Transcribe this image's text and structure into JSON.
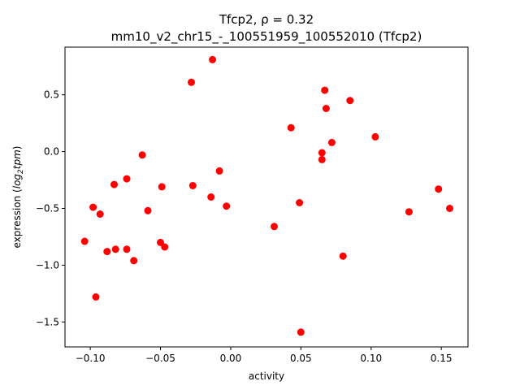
{
  "chart_data": {
    "type": "scatter",
    "title_line1": "Tfcp2, ρ = 0.32",
    "title_line2": "mm10_v2_chr15_-_100551959_100552010 (Tfcp2)",
    "xlabel": "activity",
    "ylabel_prefix": "expression (",
    "ylabel_math": "log",
    "ylabel_sub": "2",
    "ylabel_math2": "tpm",
    "ylabel_suffix": ")",
    "xlim": [
      -0.118,
      0.169
    ],
    "ylim": [
      -1.72,
      0.92
    ],
    "xticks": [
      -0.1,
      -0.05,
      0.0,
      0.05,
      0.1,
      0.15
    ],
    "xtick_labels": [
      "−0.10",
      "−0.05",
      "0.00",
      "0.05",
      "0.10",
      "0.15"
    ],
    "yticks": [
      0.5,
      0.0,
      -0.5,
      -1.0,
      -1.5
    ],
    "ytick_labels": [
      "0.5",
      "0.0",
      "−0.5",
      "−1.0",
      "−1.5"
    ],
    "grid": false,
    "marker_color": "#ff0000",
    "points": [
      {
        "x": -0.104,
        "y": -0.79
      },
      {
        "x": -0.098,
        "y": -0.49
      },
      {
        "x": -0.096,
        "y": -1.28
      },
      {
        "x": -0.093,
        "y": -0.55
      },
      {
        "x": -0.088,
        "y": -0.88
      },
      {
        "x": -0.083,
        "y": -0.29
      },
      {
        "x": -0.082,
        "y": -0.86
      },
      {
        "x": -0.074,
        "y": -0.24
      },
      {
        "x": -0.074,
        "y": -0.86
      },
      {
        "x": -0.069,
        "y": -0.96
      },
      {
        "x": -0.063,
        "y": -0.03
      },
      {
        "x": -0.059,
        "y": -0.52
      },
      {
        "x": -0.05,
        "y": -0.8
      },
      {
        "x": -0.049,
        "y": -0.31
      },
      {
        "x": -0.047,
        "y": -0.84
      },
      {
        "x": -0.028,
        "y": 0.61
      },
      {
        "x": -0.027,
        "y": -0.3
      },
      {
        "x": -0.014,
        "y": -0.4
      },
      {
        "x": -0.013,
        "y": 0.81
      },
      {
        "x": -0.008,
        "y": -0.17
      },
      {
        "x": -0.003,
        "y": -0.48
      },
      {
        "x": 0.031,
        "y": -0.66
      },
      {
        "x": 0.043,
        "y": 0.21
      },
      {
        "x": 0.049,
        "y": -0.45
      },
      {
        "x": 0.05,
        "y": -1.59
      },
      {
        "x": 0.065,
        "y": -0.01
      },
      {
        "x": 0.065,
        "y": -0.07
      },
      {
        "x": 0.067,
        "y": 0.54
      },
      {
        "x": 0.068,
        "y": 0.38
      },
      {
        "x": 0.072,
        "y": 0.08
      },
      {
        "x": 0.08,
        "y": -0.92
      },
      {
        "x": 0.085,
        "y": 0.45
      },
      {
        "x": 0.103,
        "y": 0.13
      },
      {
        "x": 0.127,
        "y": -0.53
      },
      {
        "x": 0.148,
        "y": -0.33
      },
      {
        "x": 0.156,
        "y": -0.5
      }
    ]
  }
}
